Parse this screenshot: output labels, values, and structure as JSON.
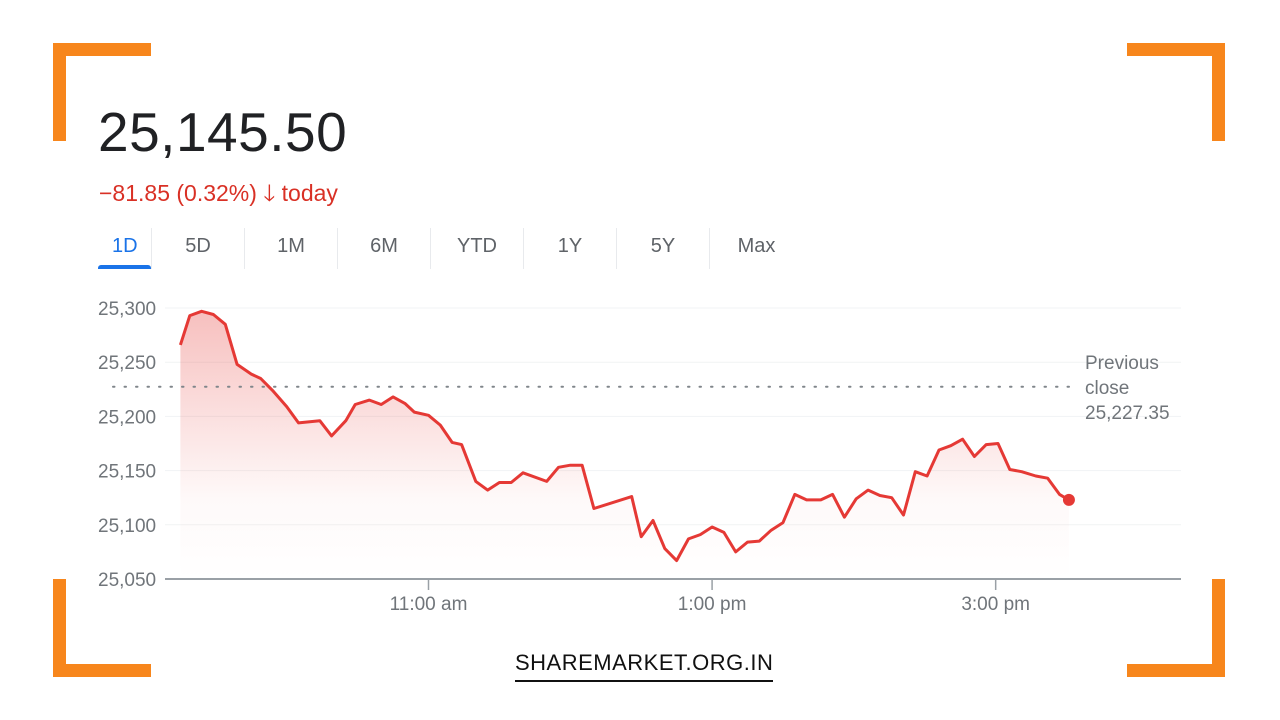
{
  "quote": {
    "price": "25,145.50",
    "change": "−81.85 (0.32%)",
    "direction_icon": "arrow-down-icon",
    "period": "today",
    "change_color": "#d93025"
  },
  "tabs": [
    {
      "label": "1D",
      "active": true
    },
    {
      "label": "5D"
    },
    {
      "label": "1M"
    },
    {
      "label": "6M"
    },
    {
      "label": "YTD"
    },
    {
      "label": "1Y"
    },
    {
      "label": "5Y"
    },
    {
      "label": "Max"
    }
  ],
  "chart_data": {
    "type": "area",
    "line_color": "#e53935",
    "ylim": [
      25050,
      25300
    ],
    "yticks": [
      "25,300",
      "25,250",
      "25,200",
      "25,150",
      "25,100",
      "25,050"
    ],
    "ytick_values": [
      25300,
      25250,
      25200,
      25150,
      25100,
      25050
    ],
    "xlim": [
      "09:14",
      "16:18"
    ],
    "xticks": [
      {
        "time": "11:00",
        "label": "11:00 am"
      },
      {
        "time": "13:00",
        "label": "1:00 pm"
      },
      {
        "time": "15:00",
        "label": "3:00 pm"
      }
    ],
    "grid": true,
    "reference_line": {
      "label_line1": "Previous",
      "label_line2": "close",
      "value_label": "25,227.35",
      "value": 25227.35
    },
    "series": [
      {
        "x": [
          "09:15",
          "09:19",
          "09:24",
          "09:29",
          "09:34",
          "09:39",
          "09:45",
          "09:49",
          "09:54",
          "10:00",
          "10:05",
          "10:14",
          "10:19",
          "10:25",
          "10:29",
          "10:35",
          "10:40",
          "10:45",
          "10:50",
          "10:54",
          "11:00",
          "11:05",
          "11:10",
          "11:14",
          "11:20",
          "11:25",
          "11:30",
          "11:35",
          "11:40",
          "11:50",
          "11:55",
          "12:00",
          "12:05",
          "12:10",
          "12:26",
          "12:30",
          "12:35",
          "12:40",
          "12:45",
          "12:50",
          "12:55",
          "13:00",
          "13:05",
          "13:10",
          "13:15",
          "13:20",
          "13:25",
          "13:30",
          "13:35",
          "13:40",
          "13:46",
          "13:51",
          "13:56",
          "14:01",
          "14:06",
          "14:11",
          "14:16",
          "14:21",
          "14:26",
          "14:31",
          "14:36",
          "14:41",
          "14:46",
          "14:51",
          "14:56",
          "15:01",
          "15:06",
          "15:11",
          "15:17",
          "15:22",
          "15:27",
          "15:31"
        ],
        "y": [
          25266,
          25293,
          25297,
          25294,
          25285,
          25248,
          25239,
          25235,
          25224,
          25209,
          25194,
          25196,
          25182,
          25196,
          25211,
          25215,
          25211,
          25218,
          25212,
          25204,
          25201,
          25192,
          25176,
          25174,
          25140,
          25132,
          25139,
          25139,
          25148,
          25140,
          25153,
          25155,
          25155,
          25115,
          25126,
          25089,
          25104,
          25078,
          25067,
          25087,
          25091,
          25098,
          25093,
          25075,
          25084,
          25085,
          25095,
          25102,
          25128,
          25123,
          25123,
          25128,
          25107,
          25124,
          25132,
          25127,
          25125,
          25109,
          25149,
          25145,
          25169,
          25173,
          25179,
          25163,
          25174,
          25175,
          25151,
          25149,
          25145,
          25143,
          25128,
          25123
        ]
      }
    ]
  },
  "footer": {
    "brand": "SHAREMARKET.ORG.IN",
    "accent_color": "#f7861c"
  }
}
